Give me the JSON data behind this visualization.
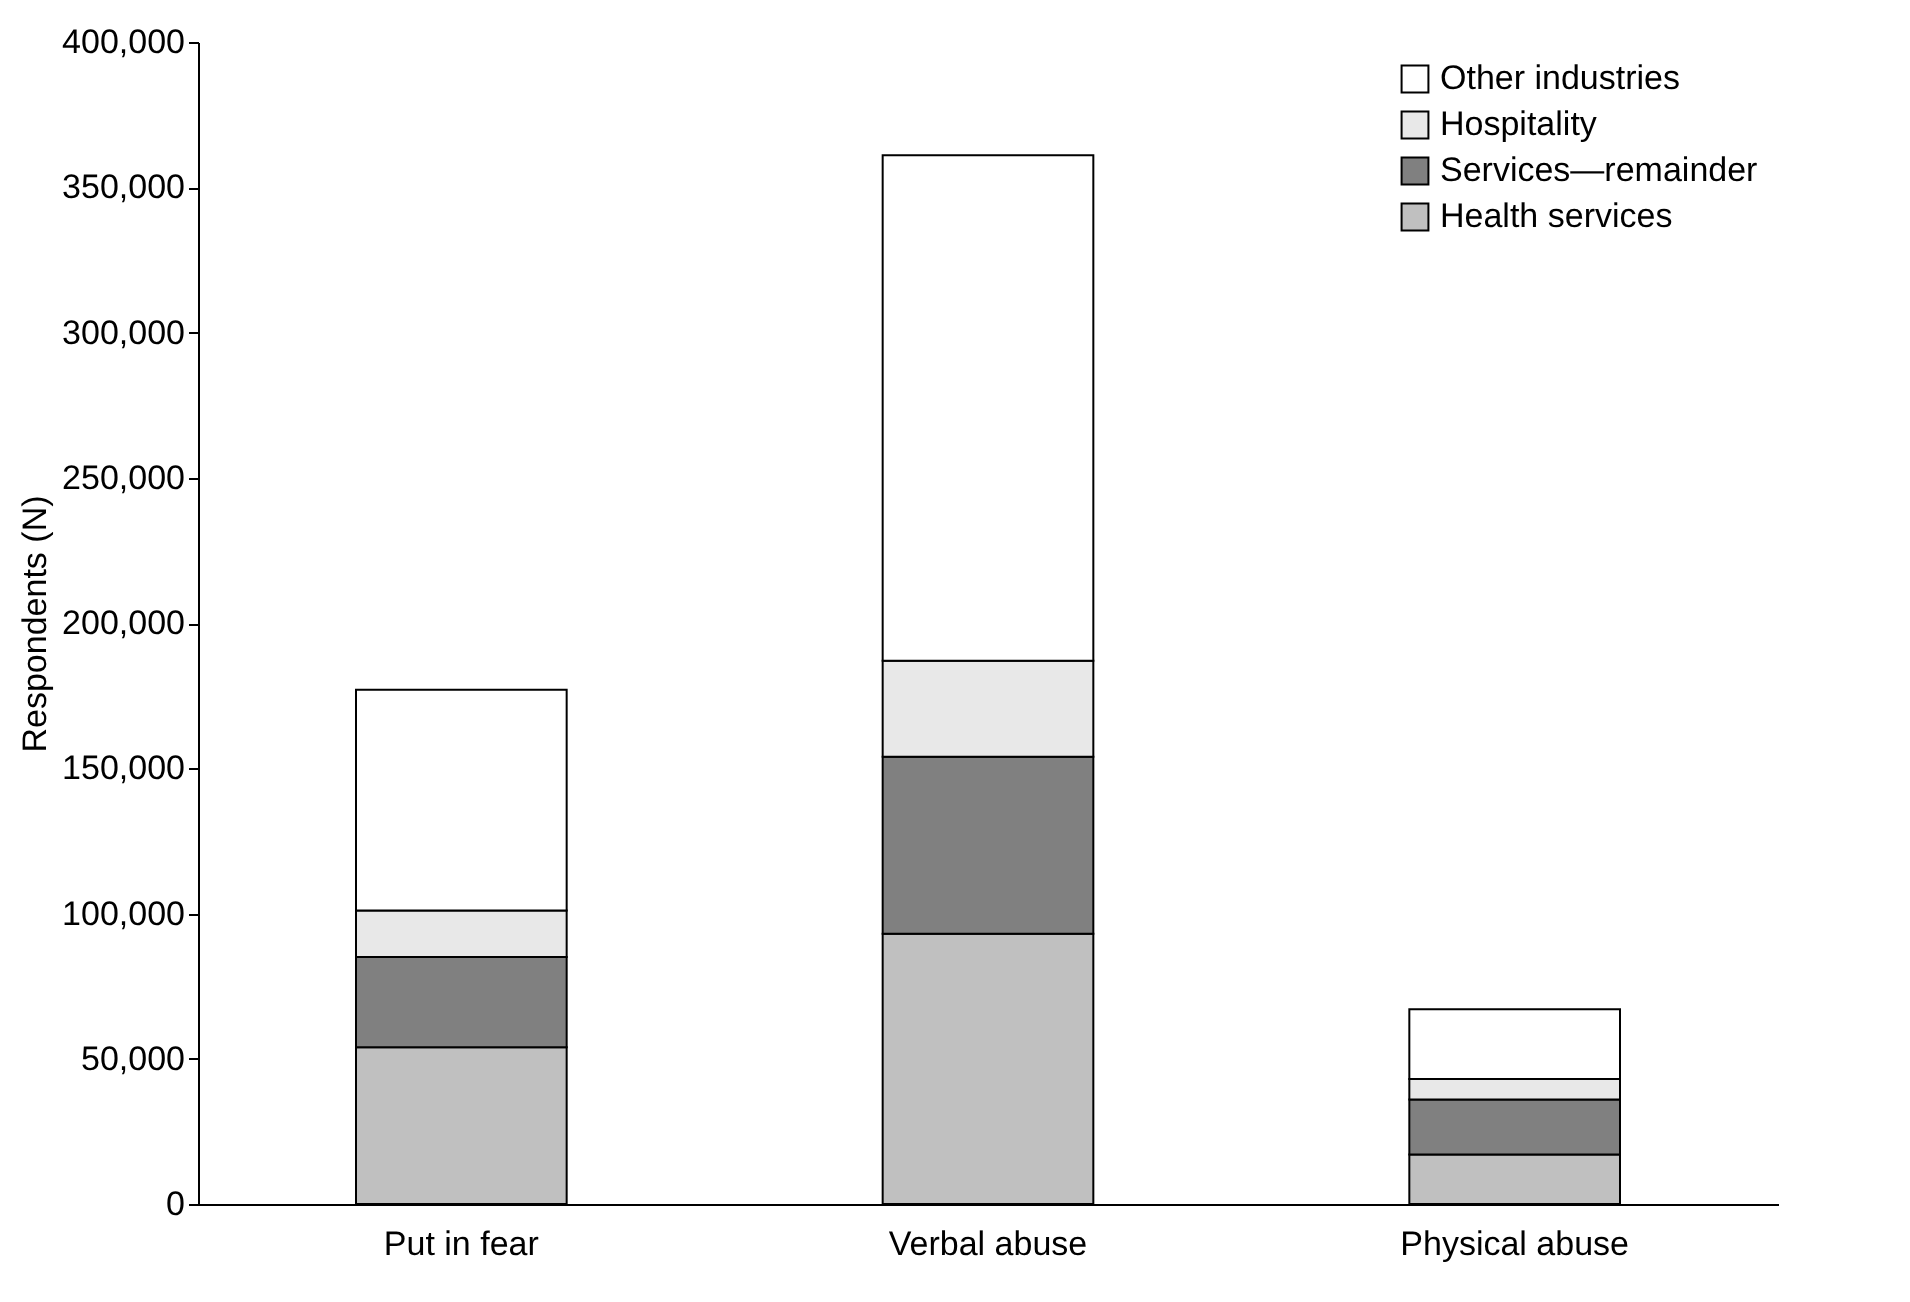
{
  "chart_data": {
    "type": "bar",
    "stacked": true,
    "ylabel": "Respondents (N)",
    "categories": [
      "Put in fear",
      "Verbal abuse",
      "Physical abuse"
    ],
    "series": [
      {
        "name": "Health services",
        "color": "#c0c0c0",
        "values": [
          54000,
          93000,
          17000
        ]
      },
      {
        "name": "Services—remainder",
        "color": "#808080",
        "values": [
          31000,
          61000,
          19000
        ]
      },
      {
        "name": "Hospitality",
        "color": "#e8e8e8",
        "values": [
          16000,
          33000,
          7000
        ]
      },
      {
        "name": "Other industries",
        "color": "#ffffff",
        "values": [
          76000,
          174000,
          24000
        ]
      }
    ],
    "ylim": [
      0,
      400000
    ],
    "yticks": [
      0,
      {
        "value": 50000,
        "label": "50,000"
      },
      {
        "value": 100000,
        "label": "100,000"
      },
      {
        "value": 150000,
        "label": "150,000"
      },
      {
        "value": 200000,
        "label": "200,000"
      },
      {
        "value": 250000,
        "label": "250,000"
      },
      {
        "value": 300000,
        "label": "300,000"
      },
      {
        "value": 350000,
        "label": "350,000"
      },
      {
        "value": 400000,
        "label": "400,000"
      }
    ],
    "grid": false,
    "legend": "top right"
  }
}
